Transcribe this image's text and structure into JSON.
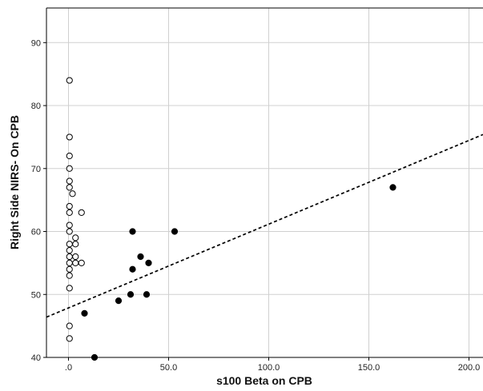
{
  "chart_data": {
    "type": "scatter",
    "title": "",
    "xlabel": "s100 Beta on CPB",
    "ylabel": "Right Side NIRS- On CPB",
    "xlim": [
      -11,
      207
    ],
    "ylim": [
      40,
      95.5
    ],
    "x_ticks": [
      0,
      50,
      100,
      150,
      200
    ],
    "x_tick_labels": [
      ".0",
      "50.0",
      "100.0",
      "150.0",
      "200.0"
    ],
    "y_ticks": [
      40,
      50,
      60,
      70,
      80,
      90
    ],
    "y_tick_labels": [
      "40",
      "50",
      "60",
      "70",
      "80",
      "90"
    ],
    "grid": true,
    "legend": "none",
    "series": [
      {
        "marker": "open-circle",
        "color": "#000000",
        "points": [
          {
            "x": 0.5,
            "y": 84
          },
          {
            "x": 0.5,
            "y": 75
          },
          {
            "x": 0.5,
            "y": 72
          },
          {
            "x": 0.5,
            "y": 70
          },
          {
            "x": 0.5,
            "y": 68
          },
          {
            "x": 0.5,
            "y": 67
          },
          {
            "x": 2,
            "y": 66
          },
          {
            "x": 0.5,
            "y": 64
          },
          {
            "x": 0.5,
            "y": 63
          },
          {
            "x": 6.5,
            "y": 63
          },
          {
            "x": 0.5,
            "y": 61
          },
          {
            "x": 0.5,
            "y": 60
          },
          {
            "x": 3.5,
            "y": 59
          },
          {
            "x": 0.5,
            "y": 58
          },
          {
            "x": 3.5,
            "y": 58
          },
          {
            "x": 0.5,
            "y": 57
          },
          {
            "x": 0.5,
            "y": 56
          },
          {
            "x": 3.5,
            "y": 56
          },
          {
            "x": 0.5,
            "y": 55
          },
          {
            "x": 3.5,
            "y": 55
          },
          {
            "x": 6.5,
            "y": 55
          },
          {
            "x": 0.5,
            "y": 54
          },
          {
            "x": 0.5,
            "y": 53
          },
          {
            "x": 0.5,
            "y": 51
          },
          {
            "x": 0.5,
            "y": 45
          },
          {
            "x": 0.5,
            "y": 43
          }
        ]
      },
      {
        "marker": "filled-circle",
        "color": "#000000",
        "points": [
          {
            "x": 32,
            "y": 60
          },
          {
            "x": 53,
            "y": 60
          },
          {
            "x": 36,
            "y": 56
          },
          {
            "x": 40,
            "y": 55
          },
          {
            "x": 32,
            "y": 54
          },
          {
            "x": 31,
            "y": 50
          },
          {
            "x": 39,
            "y": 50
          },
          {
            "x": 25,
            "y": 49
          },
          {
            "x": 8,
            "y": 47
          },
          {
            "x": 13,
            "y": 40
          },
          {
            "x": 162,
            "y": 67
          }
        ]
      }
    ],
    "fit_line": {
      "style": "dashed",
      "color": "#000000",
      "x1": -11,
      "y1": 46.4,
      "x2": 207,
      "y2": 75.4
    }
  }
}
